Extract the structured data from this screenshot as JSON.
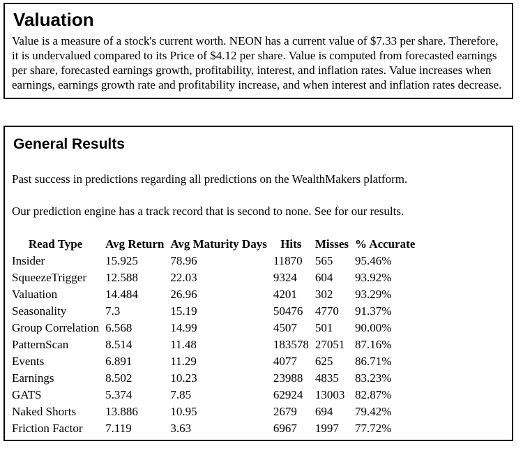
{
  "colors": {
    "background": "#ffffff",
    "text": "#000000",
    "panel_border": "#000000"
  },
  "valuation_section": {
    "title": "Valuation",
    "body": "Value is a measure of a stock's current worth. NEON has a current value of $7.33 per share. Therefore, it is undervalued compared to its Price of $4.12 per share. Value is computed from forecasted earnings per share, forecasted earnings growth, profitability, interest, and inflation rates. Value increases when earnings, earnings growth rate and profitability increase, and when interest and inflation rates decrease."
  },
  "general_results_section": {
    "title": "General Results",
    "intro1": "Past success in predictions regarding all predictions on the WealthMakers platform.",
    "intro2": "Our prediction engine has a track record that is second to none. See for our results.",
    "table": {
      "headers": [
        "Read Type",
        "Avg Return",
        "Avg Maturity Days",
        "Hits",
        "Misses",
        "% Accurate"
      ],
      "rows": [
        [
          "Insider",
          "15.925",
          "78.96",
          "11870",
          "565",
          "95.46%"
        ],
        [
          "SqueezeTrigger",
          "12.588",
          "22.03",
          "9324",
          "604",
          "93.92%"
        ],
        [
          "Valuation",
          "14.484",
          "26.96",
          "4201",
          "302",
          "93.29%"
        ],
        [
          "Seasonality",
          "7.3",
          "15.19",
          "50476",
          "4770",
          "91.37%"
        ],
        [
          "Group Correlation",
          "6.568",
          "14.99",
          "4507",
          "501",
          "90.00%"
        ],
        [
          "PatternScan",
          "8.514",
          "11.48",
          "183578",
          "27051",
          "87.16%"
        ],
        [
          "Events",
          "6.891",
          "11.29",
          "4077",
          "625",
          "86.71%"
        ],
        [
          "Earnings",
          "8.502",
          "10.23",
          "23988",
          "4835",
          "83.23%"
        ],
        [
          "GATS",
          "5.374",
          "7.85",
          "62924",
          "13003",
          "82.87%"
        ],
        [
          "Naked Shorts",
          "13.886",
          "10.95",
          "2679",
          "694",
          "79.42%"
        ],
        [
          "Friction Factor",
          "7.119",
          "3.63",
          "6967",
          "1997",
          "77.72%"
        ]
      ]
    }
  }
}
